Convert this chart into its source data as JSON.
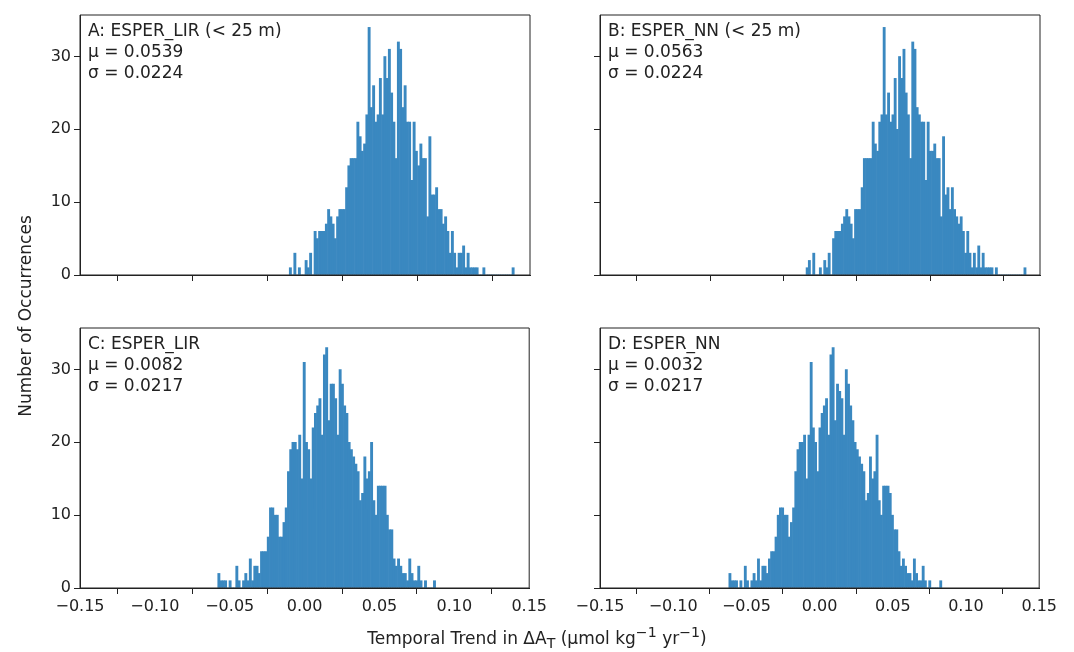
{
  "chart_data": [
    {
      "type": "histogram",
      "ylabel": "Number of Occurrences",
      "annotations": [
        "A: ESPER_LIR (< 25 m)",
        "μ = 0.0539",
        "σ = 0.0224"
      ],
      "color": "#3a88c0",
      "xlim": [
        -0.15,
        0.15
      ],
      "xticks": [
        -0.15,
        -0.1,
        -0.05,
        0,
        0.05,
        0.1,
        0.15
      ],
      "ylim": [
        0,
        35.7
      ],
      "yticks": [
        0,
        10,
        20,
        30
      ],
      "tick_labels": "y",
      "grid": false,
      "legend": false,
      "bins": [
        -0.0105,
        -0.009,
        -0.0075,
        -0.006,
        -0.0045,
        -0.003,
        -0.0015,
        0,
        0.0015,
        0.003,
        0.0045,
        0.006,
        0.0075,
        0.009,
        0.0105,
        0.012,
        0.0135,
        0.015,
        0.0165,
        0.018,
        0.0195,
        0.021,
        0.0225,
        0.024,
        0.0255,
        0.027,
        0.0285,
        0.03,
        0.0315,
        0.033,
        0.0345,
        0.036,
        0.0375,
        0.039,
        0.0405,
        0.042,
        0.0435,
        0.045,
        0.0465,
        0.048,
        0.0495,
        0.051,
        0.0525,
        0.054,
        0.0555,
        0.057,
        0.0585,
        0.06,
        0.0615,
        0.063,
        0.0645,
        0.066,
        0.0675,
        0.069,
        0.0705,
        0.072,
        0.0735,
        0.075,
        0.0765,
        0.078,
        0.0795,
        0.081,
        0.0825,
        0.084,
        0.0855,
        0.087,
        0.0885,
        0.09,
        0.0915,
        0.093,
        0.0945,
        0.096,
        0.0975,
        0.099,
        0.1005,
        0.102,
        0.1035,
        0.105,
        0.1065,
        0.108,
        0.1095,
        0.111,
        0.1125,
        0.114,
        0.1155,
        0.117,
        0.1185,
        0.12,
        0.1215,
        0.123,
        0.1245,
        0.126,
        0.1275,
        0.129,
        0.1305,
        0.132,
        0.1335,
        0.135,
        0.1365,
        0.138,
        0.1395
      ],
      "values": [
        1,
        0,
        3,
        0,
        1,
        0,
        0,
        2,
        1,
        3,
        0,
        6,
        5,
        6,
        6,
        6,
        7,
        9,
        8,
        7,
        5,
        8,
        9,
        9,
        9,
        12,
        15,
        16,
        16,
        16,
        21,
        19,
        17,
        18,
        22,
        34,
        23,
        26,
        21,
        22,
        27,
        22,
        30,
        27,
        31,
        25,
        21,
        16,
        32,
        31,
        23,
        26,
        21,
        21,
        13,
        21,
        17,
        15,
        18,
        16,
        16,
        8,
        19,
        11,
        11,
        12,
        9,
        9,
        7,
        8,
        6,
        3,
        6,
        3,
        1,
        3,
        3,
        4,
        1,
        3,
        1,
        1,
        1,
        1,
        0,
        0,
        1,
        0,
        0,
        0,
        0,
        0,
        0,
        0,
        0,
        0,
        0,
        0,
        0,
        1
      ]
    },
    {
      "type": "histogram",
      "annotations": [
        "B: ESPER_NN (< 25 m)",
        "μ = 0.0563",
        "σ = 0.0224"
      ],
      "color": "#3a88c0",
      "xlim": [
        -0.15,
        0.15
      ],
      "xticks": [
        -0.15,
        -0.1,
        -0.05,
        0,
        0.05,
        0.1,
        0.15
      ],
      "ylim": [
        0,
        35.7
      ],
      "yticks": [
        0,
        10,
        20,
        30
      ],
      "tick_labels": false,
      "grid": false,
      "legend": false,
      "bins": [
        -0.0095,
        -0.008,
        -0.0065,
        -0.005,
        -0.0035,
        -0.002,
        -0.0005,
        0.001,
        0.0025,
        0.004,
        0.0055,
        0.007,
        0.0085,
        0.01,
        0.0115,
        0.013,
        0.0145,
        0.016,
        0.0175,
        0.019,
        0.0205,
        0.022,
        0.0235,
        0.025,
        0.0265,
        0.028,
        0.0295,
        0.031,
        0.0325,
        0.034,
        0.0355,
        0.037,
        0.0385,
        0.04,
        0.0415,
        0.043,
        0.0445,
        0.046,
        0.0475,
        0.049,
        0.0505,
        0.052,
        0.0535,
        0.055,
        0.0565,
        0.058,
        0.0595,
        0.061,
        0.0625,
        0.064,
        0.0655,
        0.067,
        0.0685,
        0.07,
        0.0715,
        0.073,
        0.0745,
        0.076,
        0.0775,
        0.079,
        0.0805,
        0.082,
        0.0835,
        0.085,
        0.0865,
        0.088,
        0.0895,
        0.091,
        0.0925,
        0.094,
        0.0955,
        0.097,
        0.0985,
        0.1,
        0.1015,
        0.103,
        0.1045,
        0.106,
        0.1075,
        0.109,
        0.1105,
        0.112,
        0.1135,
        0.115,
        0.1165,
        0.118,
        0.1195,
        0.121,
        0.1225,
        0.124,
        0.1255,
        0.127,
        0.1285,
        0.13,
        0.1315,
        0.133,
        0.1345,
        0.136,
        0.1375,
        0.139,
        0.1405
      ],
      "values": [
        1,
        2,
        0,
        3,
        0,
        0,
        1,
        0,
        2,
        1,
        3,
        0,
        5,
        6,
        6,
        6,
        7,
        8,
        9,
        8,
        7,
        5,
        9,
        9,
        9,
        12,
        16,
        16,
        16,
        16,
        21,
        18,
        17,
        21,
        22,
        34,
        22,
        25,
        21,
        22,
        27,
        20,
        30,
        27,
        31,
        25,
        22,
        16,
        32,
        31,
        23,
        22,
        21,
        21,
        13,
        21,
        17,
        17,
        18,
        16,
        16,
        8,
        19,
        11,
        12,
        9,
        12,
        9,
        8,
        7,
        8,
        6,
        3,
        6,
        3,
        1,
        3,
        1,
        4,
        1,
        3,
        1,
        1,
        1,
        1,
        0,
        1,
        0,
        0,
        0,
        0,
        0,
        0,
        0,
        0,
        0,
        0,
        0,
        0,
        1
      ]
    },
    {
      "type": "histogram",
      "xlabel": "Temporal Trend in ΔA$_{T}$ (μmol kg$^{−1}$ yr$^{−1}$)",
      "annotations": [
        "C: ESPER_LIR",
        "μ = 0.0082",
        "σ = 0.0217"
      ],
      "color": "#3a88c0",
      "xlim": [
        -0.15,
        0.15
      ],
      "xticks": [
        -0.15,
        {
          "value": -0.1,
          "label": "−0.10"
        },
        -0.05,
        {
          "value": 0,
          "label": "0.00"
        },
        0.05,
        {
          "value": 0.1,
          "label": "0.10"
        },
        0.15
      ],
      "ylim": [
        0,
        35.7
      ],
      "yticks": [
        0,
        10,
        20,
        30
      ],
      "grid": false,
      "legend": false,
      "bins": [
        -0.058,
        -0.0565,
        -0.055,
        -0.0535,
        -0.052,
        -0.0505,
        -0.049,
        -0.0475,
        -0.046,
        -0.0445,
        -0.043,
        -0.0415,
        -0.04,
        -0.0385,
        -0.037,
        -0.0355,
        -0.034,
        -0.0325,
        -0.031,
        -0.0295,
        -0.028,
        -0.0265,
        -0.025,
        -0.0235,
        -0.022,
        -0.0205,
        -0.019,
        -0.0175,
        -0.016,
        -0.0145,
        -0.013,
        -0.0115,
        -0.01,
        -0.0085,
        -0.007,
        -0.0055,
        -0.004,
        -0.0025,
        -0.001,
        0.0005,
        0.002,
        0.0035,
        0.005,
        0.0065,
        0.008,
        0.0095,
        0.011,
        0.0125,
        0.014,
        0.0155,
        0.017,
        0.0185,
        0.02,
        0.0215,
        0.023,
        0.0245,
        0.026,
        0.0275,
        0.029,
        0.0305,
        0.032,
        0.0335,
        0.035,
        0.0365,
        0.038,
        0.0395,
        0.041,
        0.0425,
        0.044,
        0.0455,
        0.047,
        0.0485,
        0.05,
        0.0515,
        0.053,
        0.0545,
        0.056,
        0.0575,
        0.059,
        0.0605,
        0.062,
        0.0635,
        0.065,
        0.0665,
        0.068,
        0.0695,
        0.071,
        0.0725,
        0.074,
        0.0755,
        0.077,
        0.0785,
        0.08,
        0.0815,
        0.083,
        0.0845,
        0.086,
        0.0875
      ],
      "values": [
        2,
        1,
        1,
        1,
        0,
        1,
        0,
        0,
        3,
        1,
        0,
        1,
        2,
        1,
        4,
        1,
        3,
        3,
        2,
        5,
        5,
        5,
        7,
        11,
        11,
        10,
        10,
        7,
        7,
        9,
        11,
        16,
        19,
        20,
        20,
        19,
        21,
        15,
        31,
        20,
        19,
        15,
        22,
        24,
        25,
        26,
        21,
        32,
        33,
        23,
        28,
        28,
        26,
        21,
        30,
        28,
        25,
        24,
        20,
        19,
        18,
        17,
        16,
        12,
        13,
        18,
        15,
        16,
        20,
        12,
        10,
        14,
        14,
        14,
        14,
        10,
        8,
        8,
        4,
        3,
        4,
        3,
        2,
        2,
        1,
        4,
        2,
        1,
        1,
        3,
        1,
        0,
        1,
        0,
        0,
        0,
        1
      ]
    },
    {
      "type": "histogram",
      "annotations": [
        "D: ESPER_NN",
        "μ = 0.0032",
        "σ = 0.0217"
      ],
      "color": "#3a88c0",
      "xlim": [
        -0.15,
        0.15
      ],
      "xticks": [
        -0.15,
        {
          "value": -0.1,
          "label": "−0.10"
        },
        -0.05,
        {
          "value": 0,
          "label": "0.00"
        },
        0.05,
        {
          "value": 0.1,
          "label": "0.10"
        },
        0.15
      ],
      "ylim": [
        0,
        35.7
      ],
      "yticks": [
        0,
        10,
        20,
        30
      ],
      "tick_labels": "x",
      "grid": false,
      "legend": false,
      "bins": [
        -0.062,
        -0.0605,
        -0.059,
        -0.0575,
        -0.056,
        -0.0545,
        -0.053,
        -0.0515,
        -0.05,
        -0.0485,
        -0.047,
        -0.0455,
        -0.044,
        -0.0425,
        -0.041,
        -0.0395,
        -0.038,
        -0.0365,
        -0.035,
        -0.0335,
        -0.032,
        -0.0305,
        -0.029,
        -0.0275,
        -0.026,
        -0.0245,
        -0.023,
        -0.0215,
        -0.02,
        -0.0185,
        -0.017,
        -0.0155,
        -0.014,
        -0.0125,
        -0.011,
        -0.0095,
        -0.008,
        -0.0065,
        -0.005,
        -0.0035,
        -0.002,
        -0.0005,
        0.001,
        0.0025,
        0.004,
        0.0055,
        0.007,
        0.0085,
        0.01,
        0.0115,
        0.013,
        0.0145,
        0.016,
        0.0175,
        0.019,
        0.0205,
        0.022,
        0.0235,
        0.025,
        0.0265,
        0.028,
        0.0295,
        0.031,
        0.0325,
        0.034,
        0.0355,
        0.037,
        0.0385,
        0.04,
        0.0415,
        0.043,
        0.0445,
        0.046,
        0.0475,
        0.049,
        0.0505,
        0.052,
        0.0535,
        0.055,
        0.0565,
        0.058,
        0.0595,
        0.061,
        0.0625,
        0.064,
        0.0655,
        0.067,
        0.0685,
        0.07,
        0.0715,
        0.073,
        0.0745,
        0.076,
        0.0775,
        0.079,
        0.0805,
        0.082,
        0.0835
      ],
      "values": [
        2,
        1,
        1,
        1,
        0,
        1,
        0,
        3,
        1,
        0,
        1,
        2,
        1,
        4,
        1,
        3,
        3,
        2,
        4,
        5,
        5,
        7,
        10,
        11,
        11,
        10,
        10,
        7,
        9,
        11,
        16,
        19,
        20,
        20,
        21,
        15,
        21,
        31,
        22,
        20,
        16,
        22,
        24,
        25,
        26,
        21,
        32,
        33,
        23,
        28,
        27,
        26,
        21,
        30,
        28,
        25,
        23,
        20,
        19,
        18,
        17,
        16,
        12,
        13,
        18,
        15,
        16,
        21,
        12,
        10,
        14,
        14,
        14,
        13,
        10,
        8,
        8,
        5,
        3,
        4,
        3,
        2,
        2,
        1,
        4,
        2,
        1,
        1,
        3,
        1,
        0,
        1,
        0,
        0,
        0,
        0,
        1
      ]
    }
  ]
}
